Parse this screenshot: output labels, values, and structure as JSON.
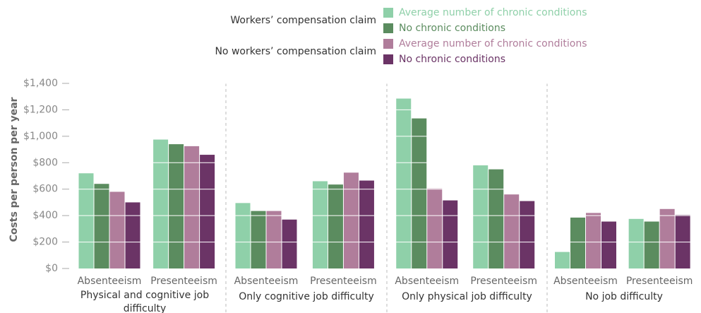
{
  "chart_data": {
    "type": "bar",
    "y_label": "Costs per person per year",
    "legend_group_labels": [
      "Workers’ compensation claim",
      "No workers’ compensation claim"
    ],
    "groups": [
      "Physical and cognitive job difficulty",
      "Only cognitive job difficulty",
      "Only physical job difficulty",
      "No job difficulty"
    ],
    "categories": [
      "Absenteeism",
      "Presenteeism",
      "Absenteeism",
      "Presenteeism",
      "Absenteeism",
      "Presenteeism",
      "Absenteeism",
      "Presenteeism"
    ],
    "series": [
      {
        "name": "Average number of chronic conditions",
        "color": "#8fd0a9",
        "values": [
          720,
          975,
          495,
          660,
          1285,
          780,
          125,
          375
        ]
      },
      {
        "name": "No chronic conditions",
        "color": "#5b8c5f",
        "values": [
          640,
          940,
          435,
          635,
          1135,
          750,
          385,
          355
        ]
      },
      {
        "name": "Average number of chronic conditions",
        "color": "#b07d9b",
        "values": [
          580,
          925,
          435,
          725,
          605,
          560,
          420,
          450
        ]
      },
      {
        "name": "No chronic conditions",
        "color": "#6b3466",
        "values": [
          500,
          860,
          370,
          665,
          515,
          510,
          355,
          405
        ]
      }
    ],
    "ylim": [
      0,
      1400
    ],
    "yticks": [
      {
        "value": 0,
        "label": "$0"
      },
      {
        "value": 200,
        "label": "$200"
      },
      {
        "value": 400,
        "label": "$400"
      },
      {
        "value": 600,
        "label": "$600"
      },
      {
        "value": 800,
        "label": "$800"
      },
      {
        "value": 1000,
        "label": "$1,000"
      },
      {
        "value": 1200,
        "label": "$1,200"
      },
      {
        "value": 1400,
        "label": "$1,400"
      }
    ],
    "grid": true
  }
}
